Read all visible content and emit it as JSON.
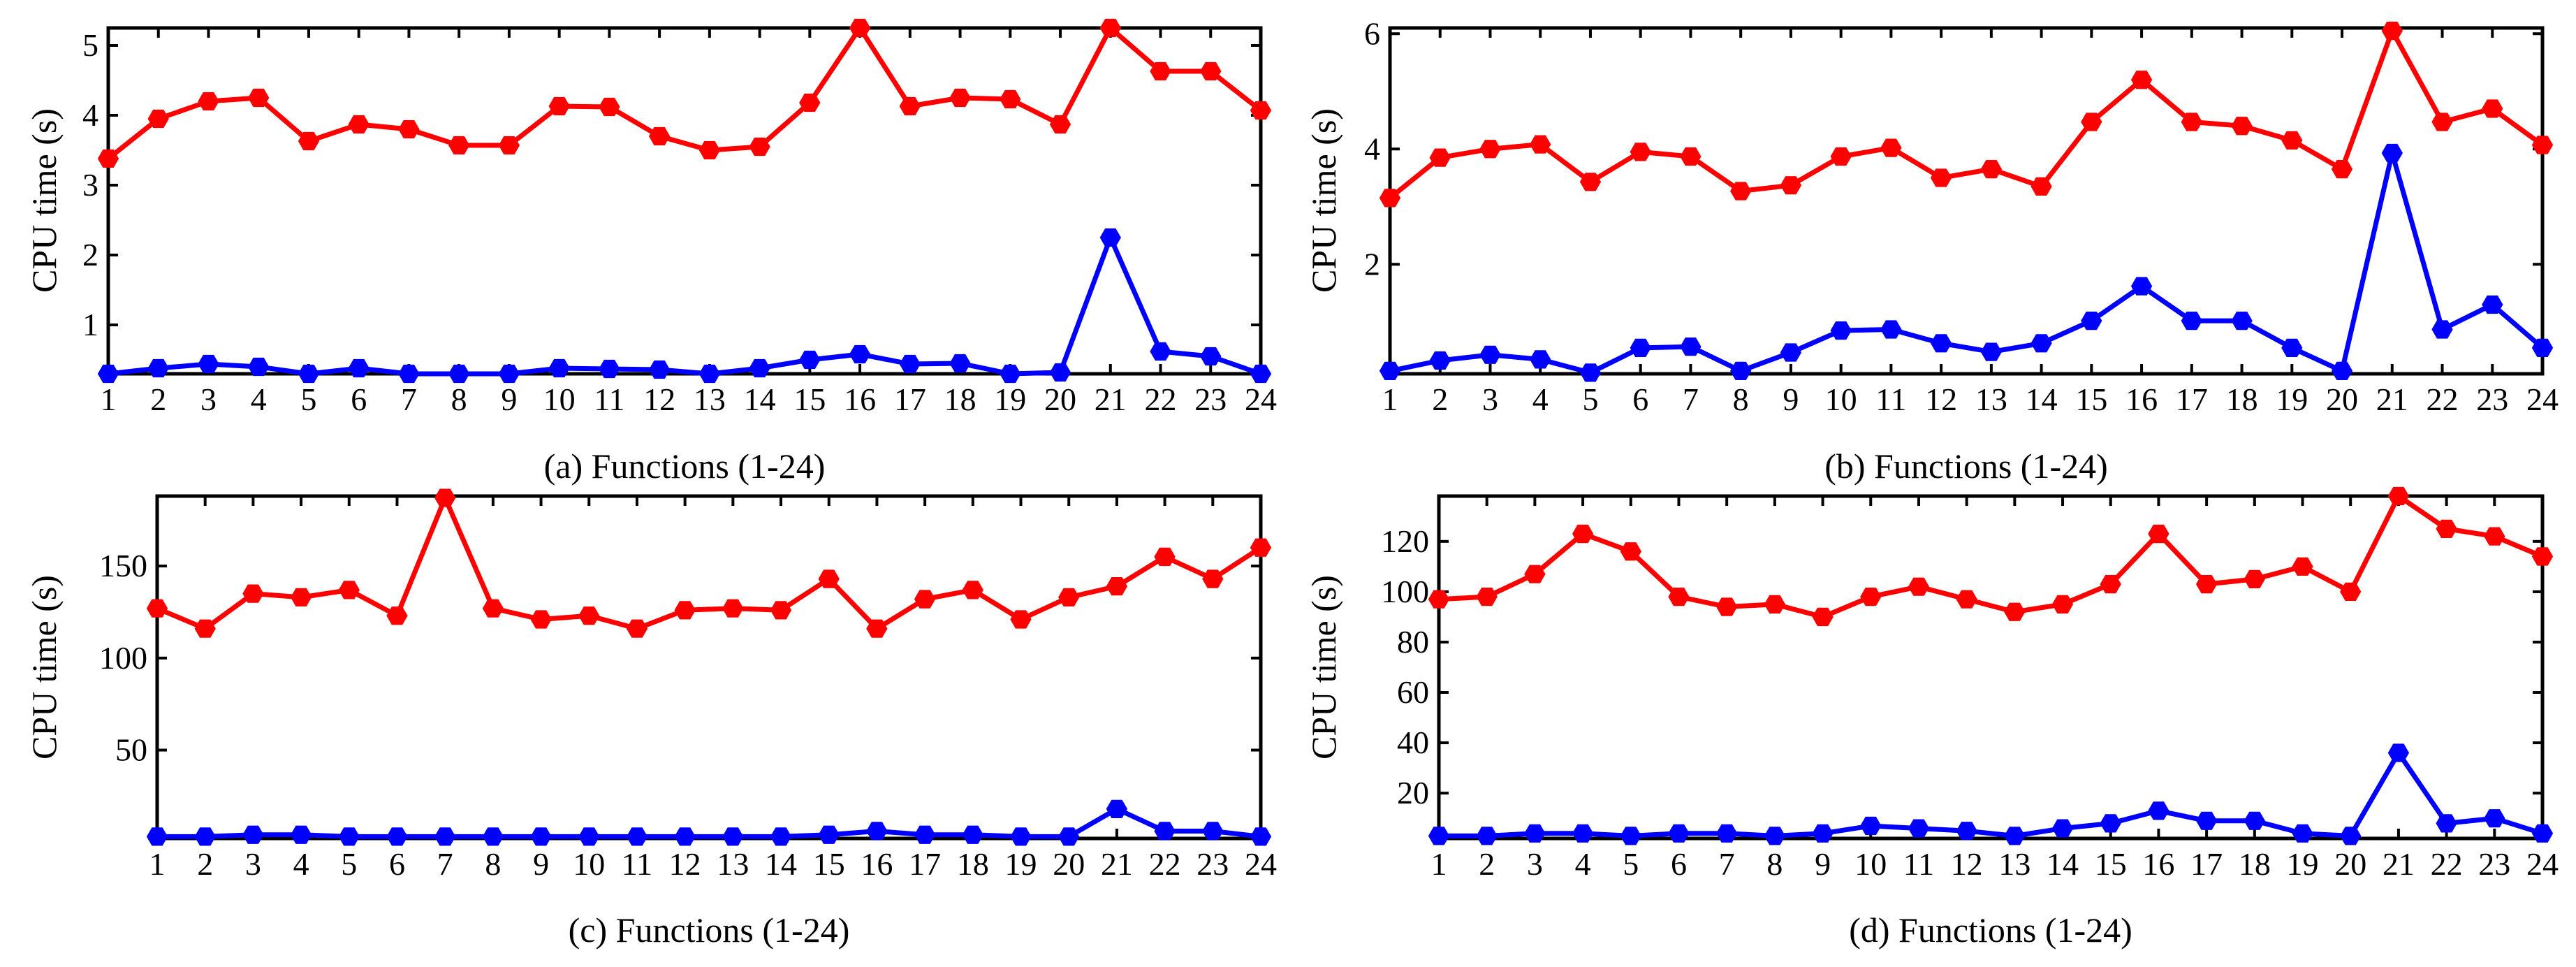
{
  "figure": {
    "description_hidden": false
  },
  "series_colors": {
    "red": "#ff0000",
    "blue": "#0000ff",
    "axis": "#000000"
  },
  "chart_data": [
    {
      "id": "a",
      "type": "line",
      "caption": "(a) Functions (1-24)",
      "xlabel": "",
      "ylabel": "CPU time (s)",
      "xlim": [
        1,
        24
      ],
      "ylim": [
        0.3,
        5.25
      ],
      "yticks": [
        1,
        2,
        3,
        4,
        5
      ],
      "categories": [
        1,
        2,
        3,
        4,
        5,
        6,
        7,
        8,
        9,
        10,
        11,
        12,
        13,
        14,
        15,
        16,
        17,
        18,
        19,
        20,
        21,
        22,
        23,
        24
      ],
      "series": [
        {
          "name": "red",
          "color": "#ff0000",
          "values": [
            3.38,
            3.95,
            4.2,
            4.25,
            3.63,
            3.87,
            3.8,
            3.57,
            3.57,
            4.13,
            4.12,
            3.7,
            3.5,
            3.55,
            4.18,
            5.25,
            4.13,
            4.25,
            4.23,
            3.87,
            5.25,
            4.63,
            4.63,
            4.07
          ]
        },
        {
          "name": "blue",
          "color": "#0000ff",
          "values": [
            0.3,
            0.38,
            0.44,
            0.4,
            0.3,
            0.38,
            0.3,
            0.3,
            0.3,
            0.38,
            0.37,
            0.36,
            0.3,
            0.38,
            0.5,
            0.58,
            0.44,
            0.45,
            0.3,
            0.32,
            2.25,
            0.62,
            0.55,
            0.3
          ]
        }
      ]
    },
    {
      "id": "b",
      "type": "line",
      "caption": "(b) Functions (1-24)",
      "xlabel": "",
      "ylabel": "CPU time (s)",
      "xlim": [
        1,
        24
      ],
      "ylim": [
        0.1,
        6.1
      ],
      "yticks": [
        2,
        4,
        6
      ],
      "categories": [
        1,
        2,
        3,
        4,
        5,
        6,
        7,
        8,
        9,
        10,
        11,
        12,
        13,
        14,
        15,
        16,
        17,
        18,
        19,
        20,
        21,
        22,
        23,
        24
      ],
      "series": [
        {
          "name": "red",
          "color": "#ff0000",
          "values": [
            3.15,
            3.85,
            4.0,
            4.08,
            3.43,
            3.95,
            3.87,
            3.27,
            3.37,
            3.87,
            4.02,
            3.5,
            3.65,
            3.35,
            4.47,
            5.2,
            4.47,
            4.4,
            4.15,
            3.65,
            6.05,
            4.47,
            4.7,
            4.07
          ]
        },
        {
          "name": "blue",
          "color": "#0000ff",
          "values": [
            0.15,
            0.33,
            0.43,
            0.35,
            0.12,
            0.55,
            0.57,
            0.15,
            0.47,
            0.85,
            0.87,
            0.63,
            0.48,
            0.63,
            1.02,
            1.62,
            1.02,
            1.02,
            0.55,
            0.15,
            3.93,
            0.87,
            1.3,
            0.55
          ]
        }
      ]
    },
    {
      "id": "c",
      "type": "line",
      "caption": "(c) Functions (1-24)",
      "xlabel": "",
      "ylabel": "CPU time (s)",
      "xlim": [
        1,
        24
      ],
      "ylim": [
        2,
        188
      ],
      "yticks": [
        50,
        100,
        150
      ],
      "categories": [
        1,
        2,
        3,
        4,
        5,
        6,
        7,
        8,
        9,
        10,
        11,
        12,
        13,
        14,
        15,
        16,
        17,
        18,
        19,
        20,
        21,
        22,
        23,
        24
      ],
      "series": [
        {
          "name": "red",
          "color": "#ff0000",
          "values": [
            127,
            116,
            135,
            133,
            137,
            123,
            187,
            127,
            121,
            123,
            116,
            126,
            127,
            126,
            143,
            116,
            132,
            137,
            121,
            133,
            139,
            155,
            143,
            160
          ]
        },
        {
          "name": "blue",
          "color": "#0000ff",
          "values": [
            3,
            3,
            4,
            4,
            3,
            3,
            3,
            3,
            3,
            3,
            3,
            3,
            3,
            3,
            4,
            6,
            4,
            4,
            3,
            3,
            18,
            6,
            6,
            3
          ]
        }
      ]
    },
    {
      "id": "d",
      "type": "line",
      "caption": "(d) Functions (1-24)",
      "xlabel": "",
      "ylabel": "CPU time (s)",
      "xlim": [
        1,
        24
      ],
      "ylim": [
        2,
        138
      ],
      "yticks": [
        20,
        40,
        60,
        80,
        100,
        120
      ],
      "categories": [
        1,
        2,
        3,
        4,
        5,
        6,
        7,
        8,
        9,
        10,
        11,
        12,
        13,
        14,
        15,
        16,
        17,
        18,
        19,
        20,
        21,
        22,
        23,
        24
      ],
      "series": [
        {
          "name": "red",
          "color": "#ff0000",
          "values": [
            97,
            98,
            107,
            123,
            116,
            98,
            94,
            95,
            90,
            98,
            102,
            97,
            92,
            95,
            103,
            123,
            103,
            105,
            110,
            100,
            138,
            125,
            122,
            114
          ]
        },
        {
          "name": "blue",
          "color": "#0000ff",
          "values": [
            3,
            3,
            4,
            4,
            3,
            4,
            4,
            3,
            4,
            7,
            6,
            5,
            3,
            6,
            8,
            13,
            9,
            9,
            4,
            3,
            36,
            8,
            10,
            4
          ]
        }
      ]
    }
  ]
}
